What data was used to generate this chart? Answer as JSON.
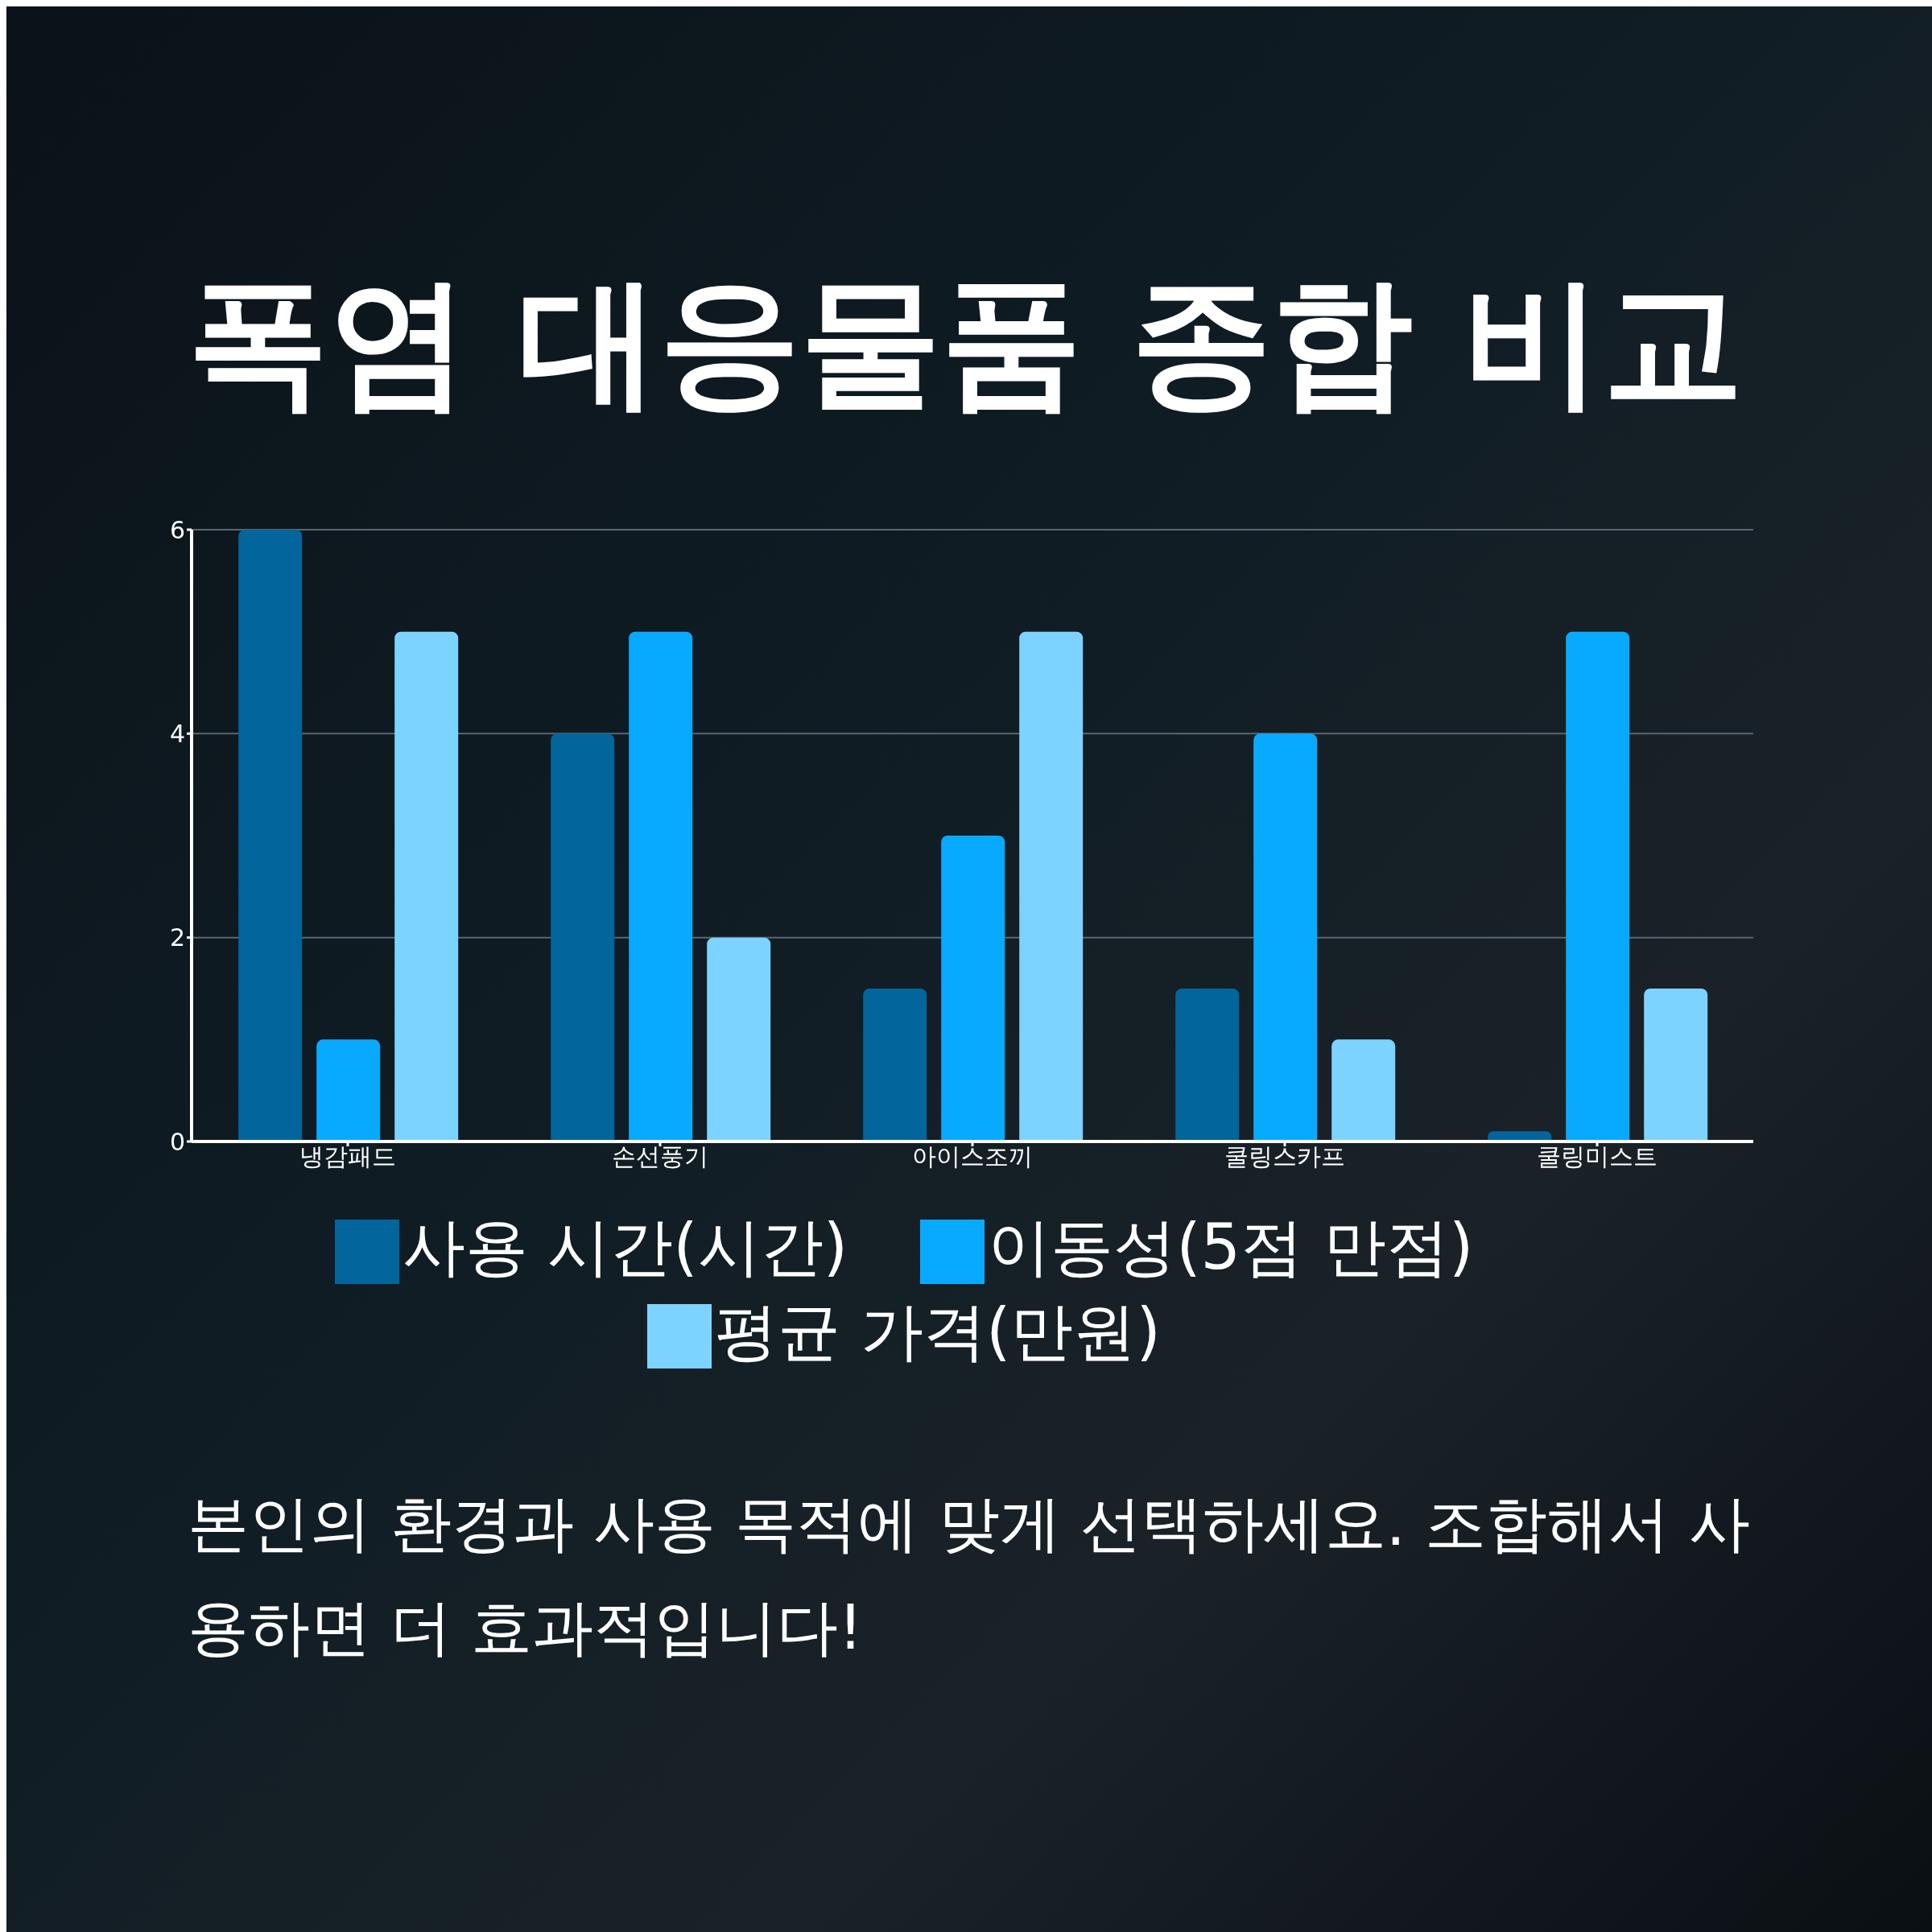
{
  "chart_data": {
    "type": "bar",
    "title": "폭염 대응물품 종합 비교",
    "categories": [
      "냉감패드",
      "손선풍기",
      "아이스조끼",
      "쿨링스카프",
      "쿨링미스트"
    ],
    "series": [
      {
        "name": "사용 시간(시간)",
        "color": "#02659b",
        "values": [
          6,
          4,
          1.5,
          1.5,
          0.1
        ]
      },
      {
        "name": "이동성(5점 만점)",
        "color": "#08aaff",
        "values": [
          1,
          5,
          3,
          4,
          5
        ]
      },
      {
        "name": "평균 가격(만원)",
        "color": "#7dd3ff",
        "values": [
          5,
          2,
          5,
          1,
          1.5
        ]
      }
    ],
    "ylim": [
      0,
      6
    ],
    "yticks": [
      0,
      2,
      4,
      6
    ],
    "grid": "y",
    "legend": "bottom",
    "annotations": [
      "본인의 환경과 사용 목적에 맞게 선택하세요. 조합해서 사용하면 더 효과적입니다!"
    ]
  }
}
